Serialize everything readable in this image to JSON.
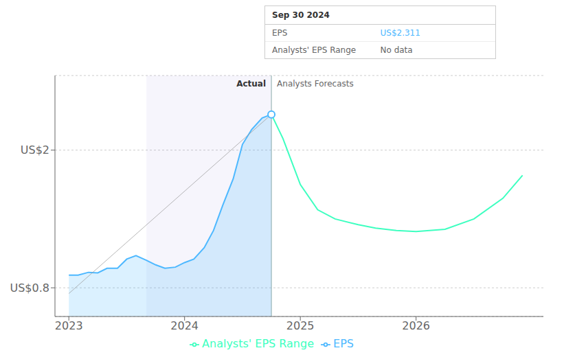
{
  "chart_data": {
    "type": "line",
    "annotations": [
      "Actual",
      "Analysts Forecasts"
    ],
    "tooltip": {
      "title": "Sep 30 2024",
      "rows": [
        {
          "label": "EPS",
          "value": "US$2.311"
        },
        {
          "label": "Analysts' EPS Range",
          "value": "No data"
        }
      ]
    },
    "series": [
      {
        "name": "EPS",
        "type": "area",
        "color": "#4db8ff",
        "x": [
          2023.0,
          2023.08,
          2023.17,
          2023.25,
          2023.33,
          2023.42,
          2023.5,
          2023.58,
          2023.67,
          2023.75,
          2023.83,
          2023.92,
          2024.0,
          2024.08,
          2024.17,
          2024.25,
          2024.33,
          2024.42,
          2024.5,
          2024.58,
          2024.67,
          2024.75
        ],
        "values": [
          0.91,
          0.91,
          0.935,
          0.93,
          0.97,
          0.97,
          1.05,
          1.08,
          1.04,
          1.0,
          0.97,
          0.98,
          1.02,
          1.05,
          1.15,
          1.3,
          1.52,
          1.75,
          2.05,
          2.18,
          2.28,
          2.311
        ]
      },
      {
        "name": "Analysts' EPS Range",
        "type": "line",
        "color": "#3dffc0",
        "x": [
          2024.75,
          2024.85,
          2025.0,
          2025.15,
          2025.3,
          2025.5,
          2025.65,
          2025.83,
          2026.0,
          2026.25,
          2026.5,
          2026.75,
          2026.92
        ],
        "values": [
          2.311,
          2.1,
          1.7,
          1.48,
          1.4,
          1.35,
          1.32,
          1.3,
          1.29,
          1.31,
          1.4,
          1.58,
          1.78
        ]
      }
    ],
    "xlim": [
      2022.88,
      2027.1
    ],
    "xticks": [
      2023,
      2024,
      2025,
      2026
    ],
    "ylim": [
      0.55,
      2.65
    ],
    "yticks": [
      {
        "value": 0.8,
        "label": "US$0.8"
      },
      {
        "value": 2,
        "label": "US$2"
      }
    ],
    "grid": true,
    "legend": "bottom",
    "highlight_span": [
      2023.67,
      2024.75
    ],
    "trend_line": {
      "x": [
        2023,
        2024.75
      ],
      "y": [
        0.75,
        2.311
      ]
    },
    "divider_x": 2024.75,
    "highlight_point": {
      "x": 2024.75,
      "y": 2.311
    }
  }
}
